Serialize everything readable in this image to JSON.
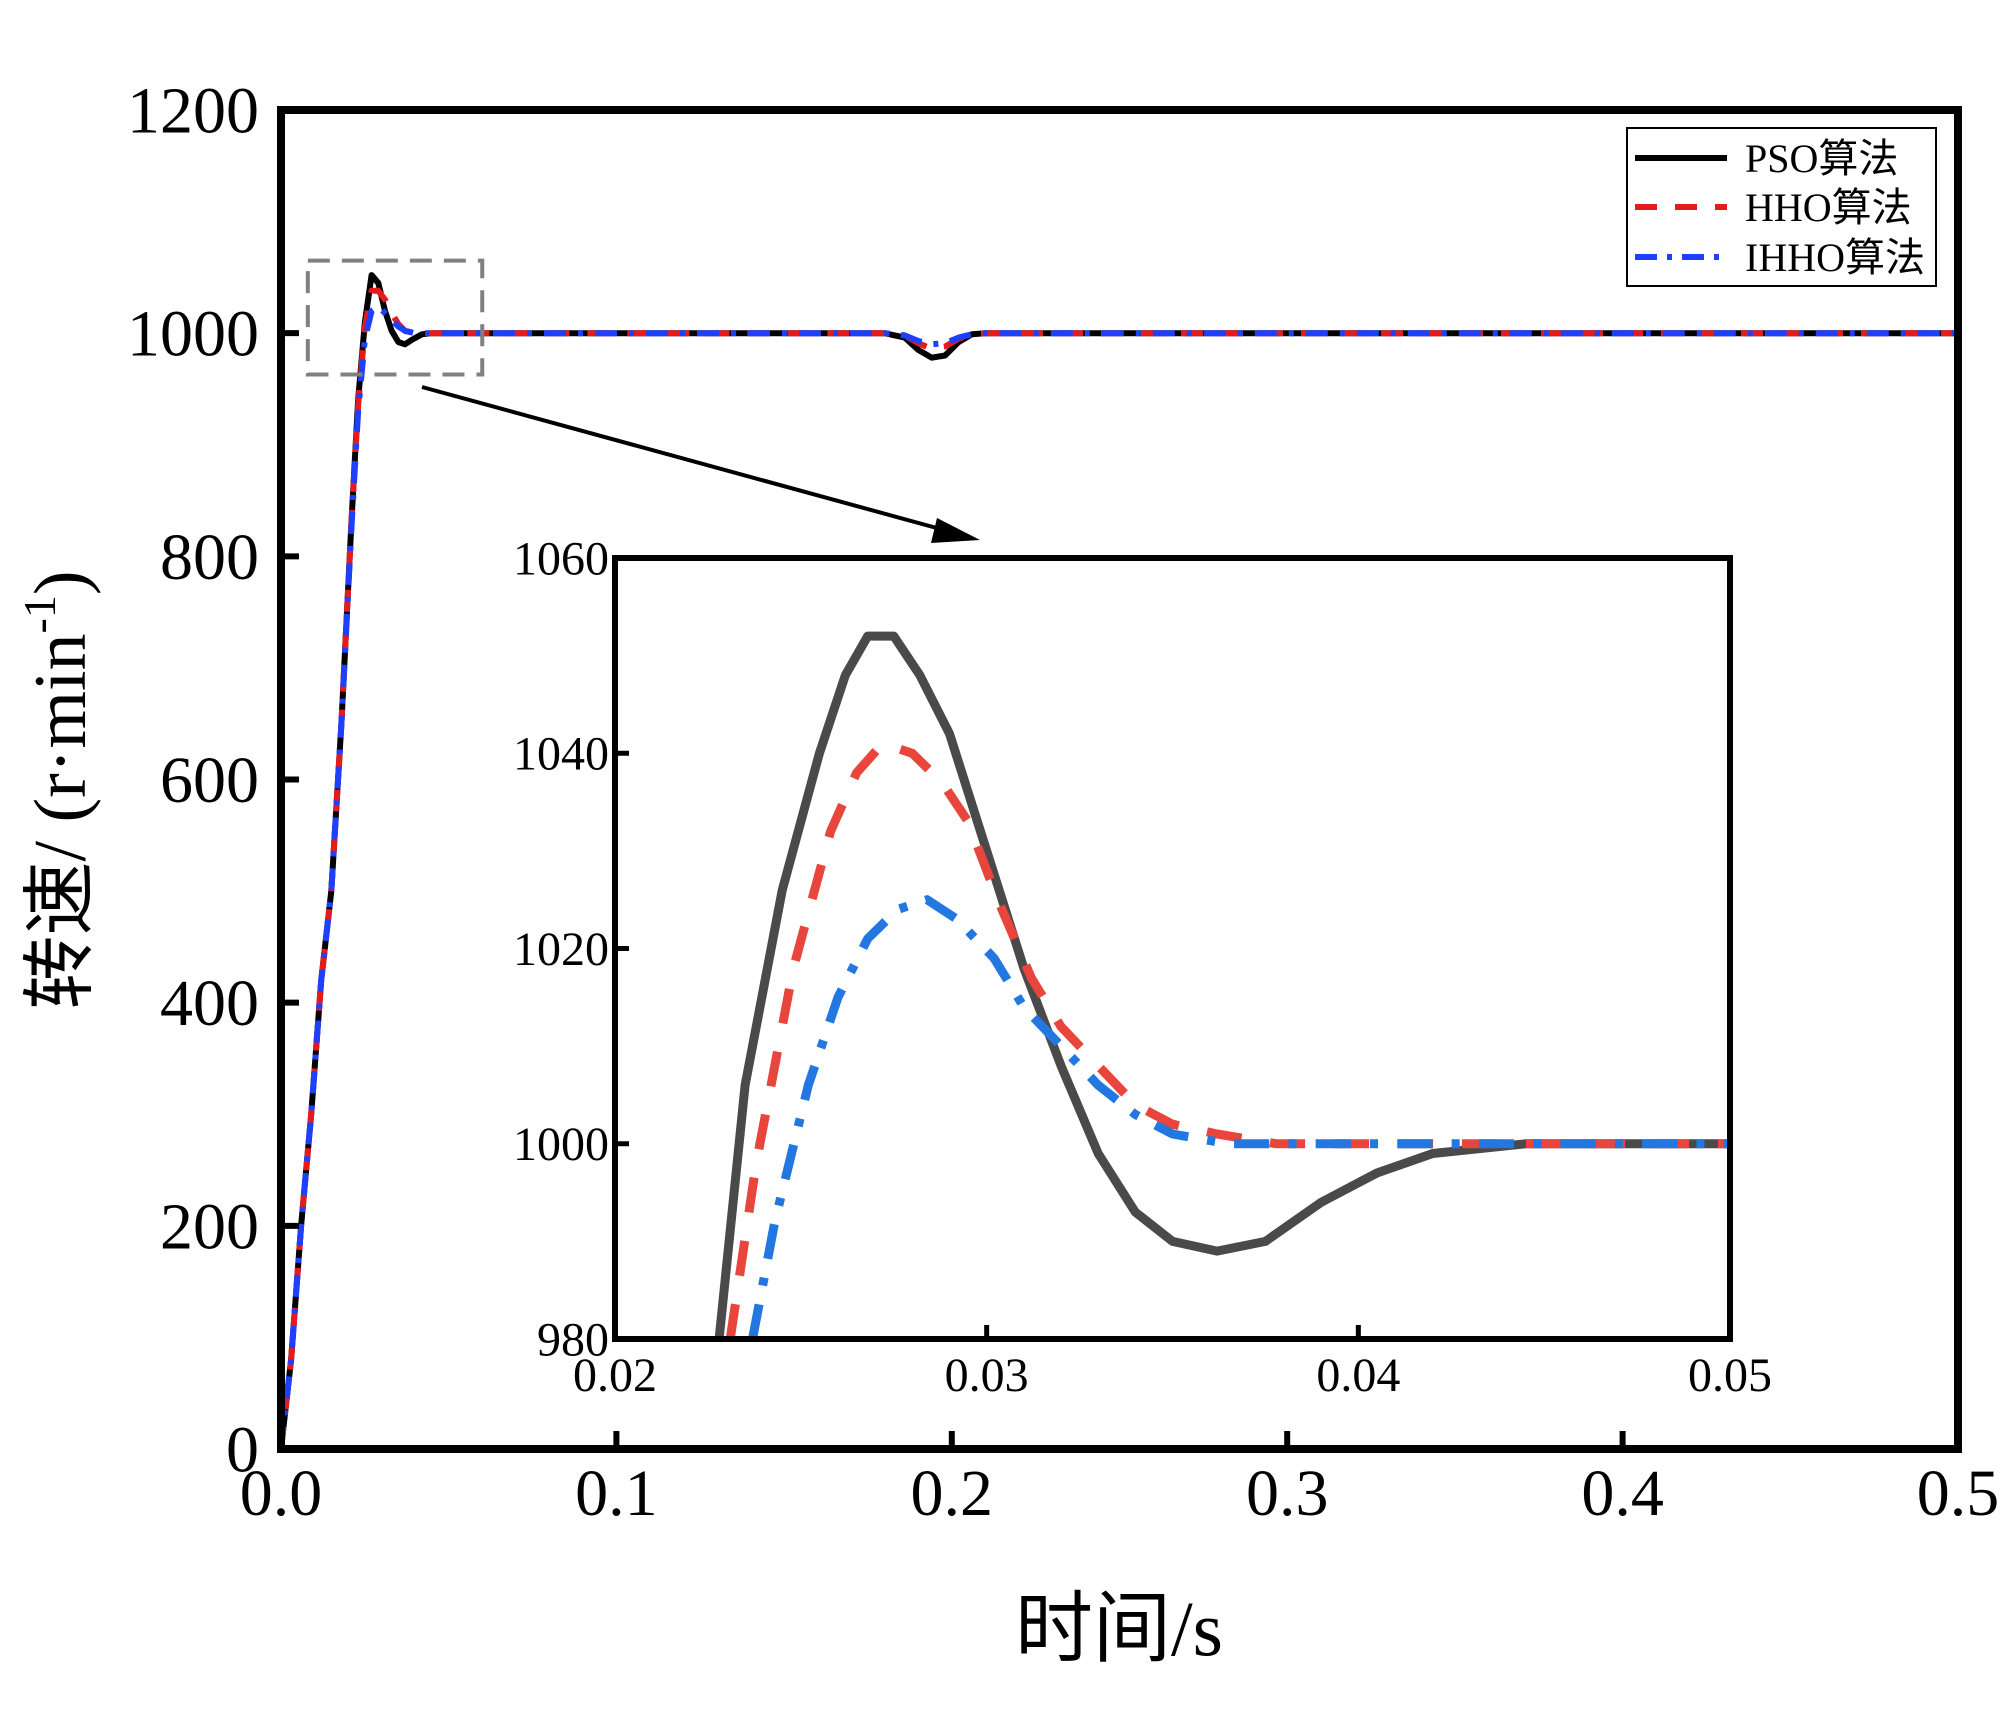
{
  "chart_data": [
    {
      "type": "line",
      "id": "main",
      "xlabel": "时间/s",
      "ylabel_main": "转速/ (r·min",
      "ylabel_sup": "-1",
      "ylabel_close": ")",
      "xlim": [
        0,
        0.5
      ],
      "ylim": [
        0,
        1200
      ],
      "x_ticks": [
        0,
        0.1,
        0.2,
        0.3,
        0.4,
        0.5
      ],
      "x_tick_labels": [
        "0.0",
        "0.1",
        "0.2",
        "0.3",
        "0.4",
        "0.5"
      ],
      "y_ticks": [
        0,
        200,
        400,
        600,
        800,
        1000,
        1200
      ],
      "y_tick_labels": [
        "0",
        "200",
        "400",
        "600",
        "800",
        "1000",
        "1200"
      ],
      "legend_position": "top-right",
      "zoom_box": {
        "x": [
          0.008,
          0.06
        ],
        "y": [
          963,
          1065
        ]
      },
      "series": [
        {
          "name": "PSO算法",
          "color": "#000000",
          "style": "solid",
          "points": [
            [
              0,
              0
            ],
            [
              0.003,
              80
            ],
            [
              0.006,
              200
            ],
            [
              0.009,
              300
            ],
            [
              0.012,
              420
            ],
            [
              0.015,
              500
            ],
            [
              0.018,
              650
            ],
            [
              0.021,
              830
            ],
            [
              0.023,
              940
            ],
            [
              0.025,
              1010
            ],
            [
              0.027,
              1052
            ],
            [
              0.029,
              1045
            ],
            [
              0.031,
              1020
            ],
            [
              0.033,
              1002
            ],
            [
              0.035,
              992
            ],
            [
              0.037,
              990
            ],
            [
              0.039,
              994
            ],
            [
              0.042,
              999
            ],
            [
              0.045,
              1000
            ],
            [
              0.18,
              1000
            ],
            [
              0.186,
              996
            ],
            [
              0.19,
              985
            ],
            [
              0.194,
              978
            ],
            [
              0.198,
              980
            ],
            [
              0.202,
              992
            ],
            [
              0.206,
              999
            ],
            [
              0.21,
              1000
            ],
            [
              0.5,
              1000
            ]
          ]
        },
        {
          "name": "HHO算法",
          "color": "#e41a1c",
          "style": "dashed",
          "points": [
            [
              0,
              0
            ],
            [
              0.003,
              80
            ],
            [
              0.006,
              200
            ],
            [
              0.009,
              300
            ],
            [
              0.012,
              420
            ],
            [
              0.015,
              500
            ],
            [
              0.018,
              650
            ],
            [
              0.021,
              830
            ],
            [
              0.023,
              935
            ],
            [
              0.025,
              1005
            ],
            [
              0.027,
              1038
            ],
            [
              0.029,
              1038
            ],
            [
              0.031,
              1030
            ],
            [
              0.033,
              1018
            ],
            [
              0.035,
              1008
            ],
            [
              0.037,
              1002
            ],
            [
              0.04,
              1000
            ],
            [
              0.18,
              1000
            ],
            [
              0.186,
              998
            ],
            [
              0.19,
              991
            ],
            [
              0.194,
              986
            ],
            [
              0.198,
              988
            ],
            [
              0.202,
              995
            ],
            [
              0.206,
              999
            ],
            [
              0.21,
              1000
            ],
            [
              0.5,
              1000
            ]
          ]
        },
        {
          "name": "IHHO算法",
          "color": "#1f3fff",
          "style": "dashdot",
          "points": [
            [
              0,
              0
            ],
            [
              0.003,
              80
            ],
            [
              0.006,
              200
            ],
            [
              0.009,
              300
            ],
            [
              0.012,
              420
            ],
            [
              0.015,
              500
            ],
            [
              0.018,
              650
            ],
            [
              0.021,
              825
            ],
            [
              0.023,
              930
            ],
            [
              0.025,
              995
            ],
            [
              0.027,
              1020
            ],
            [
              0.029,
              1024
            ],
            [
              0.031,
              1018
            ],
            [
              0.033,
              1012
            ],
            [
              0.035,
              1006
            ],
            [
              0.037,
              1002
            ],
            [
              0.04,
              1000
            ],
            [
              0.18,
              1000
            ],
            [
              0.186,
              998
            ],
            [
              0.19,
              993
            ],
            [
              0.194,
              990
            ],
            [
              0.198,
              991
            ],
            [
              0.202,
              996
            ],
            [
              0.206,
              999
            ],
            [
              0.21,
              1000
            ],
            [
              0.5,
              1000
            ]
          ]
        }
      ]
    },
    {
      "type": "line",
      "id": "inset",
      "xlim": [
        0.02,
        0.05
      ],
      "ylim": [
        980,
        1060
      ],
      "x_ticks": [
        0.02,
        0.03,
        0.04,
        0.05
      ],
      "x_tick_labels": [
        "0.02",
        "0.03",
        "0.04",
        "0.05"
      ],
      "y_ticks": [
        980,
        1000,
        1020,
        1040,
        1060
      ],
      "y_tick_labels": [
        "980",
        "1000",
        "1020",
        "1040",
        "1060"
      ],
      "series": [
        {
          "name": "PSO算法",
          "color": "#4a4a4a",
          "style": "solid",
          "points": [
            [
              0.0228,
              980
            ],
            [
              0.0235,
              1006
            ],
            [
              0.0245,
              1026
            ],
            [
              0.0255,
              1040
            ],
            [
              0.0262,
              1048
            ],
            [
              0.0268,
              1052
            ],
            [
              0.0275,
              1052
            ],
            [
              0.0282,
              1048
            ],
            [
              0.029,
              1042
            ],
            [
              0.03,
              1030
            ],
            [
              0.031,
              1018
            ],
            [
              0.032,
              1008
            ],
            [
              0.033,
              999
            ],
            [
              0.034,
              993
            ],
            [
              0.035,
              990
            ],
            [
              0.0362,
              989
            ],
            [
              0.0375,
              990
            ],
            [
              0.039,
              994
            ],
            [
              0.0405,
              997
            ],
            [
              0.042,
              999
            ],
            [
              0.0445,
              1000
            ],
            [
              0.05,
              1000
            ]
          ]
        },
        {
          "name": "HHO算法",
          "color": "#e8453c",
          "style": "dashed",
          "points": [
            [
              0.0231,
              980
            ],
            [
              0.0238,
              998
            ],
            [
              0.0248,
              1018
            ],
            [
              0.0258,
              1032
            ],
            [
              0.0265,
              1038
            ],
            [
              0.0272,
              1041
            ],
            [
              0.028,
              1040
            ],
            [
              0.0288,
              1037
            ],
            [
              0.0295,
              1033
            ],
            [
              0.0303,
              1025
            ],
            [
              0.0312,
              1017
            ],
            [
              0.032,
              1012
            ],
            [
              0.033,
              1008
            ],
            [
              0.034,
              1004
            ],
            [
              0.035,
              1002
            ],
            [
              0.0362,
              1001
            ],
            [
              0.0378,
              1000
            ],
            [
              0.04,
              1000
            ],
            [
              0.05,
              1000
            ]
          ]
        },
        {
          "name": "IHHO算法",
          "color": "#2277e0",
          "style": "dashdot",
          "points": [
            [
              0.0237,
              980
            ],
            [
              0.0243,
              992
            ],
            [
              0.0252,
              1006
            ],
            [
              0.026,
              1015
            ],
            [
              0.0268,
              1021
            ],
            [
              0.0276,
              1024
            ],
            [
              0.0284,
              1025
            ],
            [
              0.0292,
              1023
            ],
            [
              0.0302,
              1019
            ],
            [
              0.031,
              1014
            ],
            [
              0.032,
              1010
            ],
            [
              0.033,
              1006
            ],
            [
              0.034,
              1003
            ],
            [
              0.035,
              1001
            ],
            [
              0.0365,
              1000
            ],
            [
              0.038,
              1000
            ],
            [
              0.05,
              1000
            ]
          ]
        }
      ]
    }
  ]
}
